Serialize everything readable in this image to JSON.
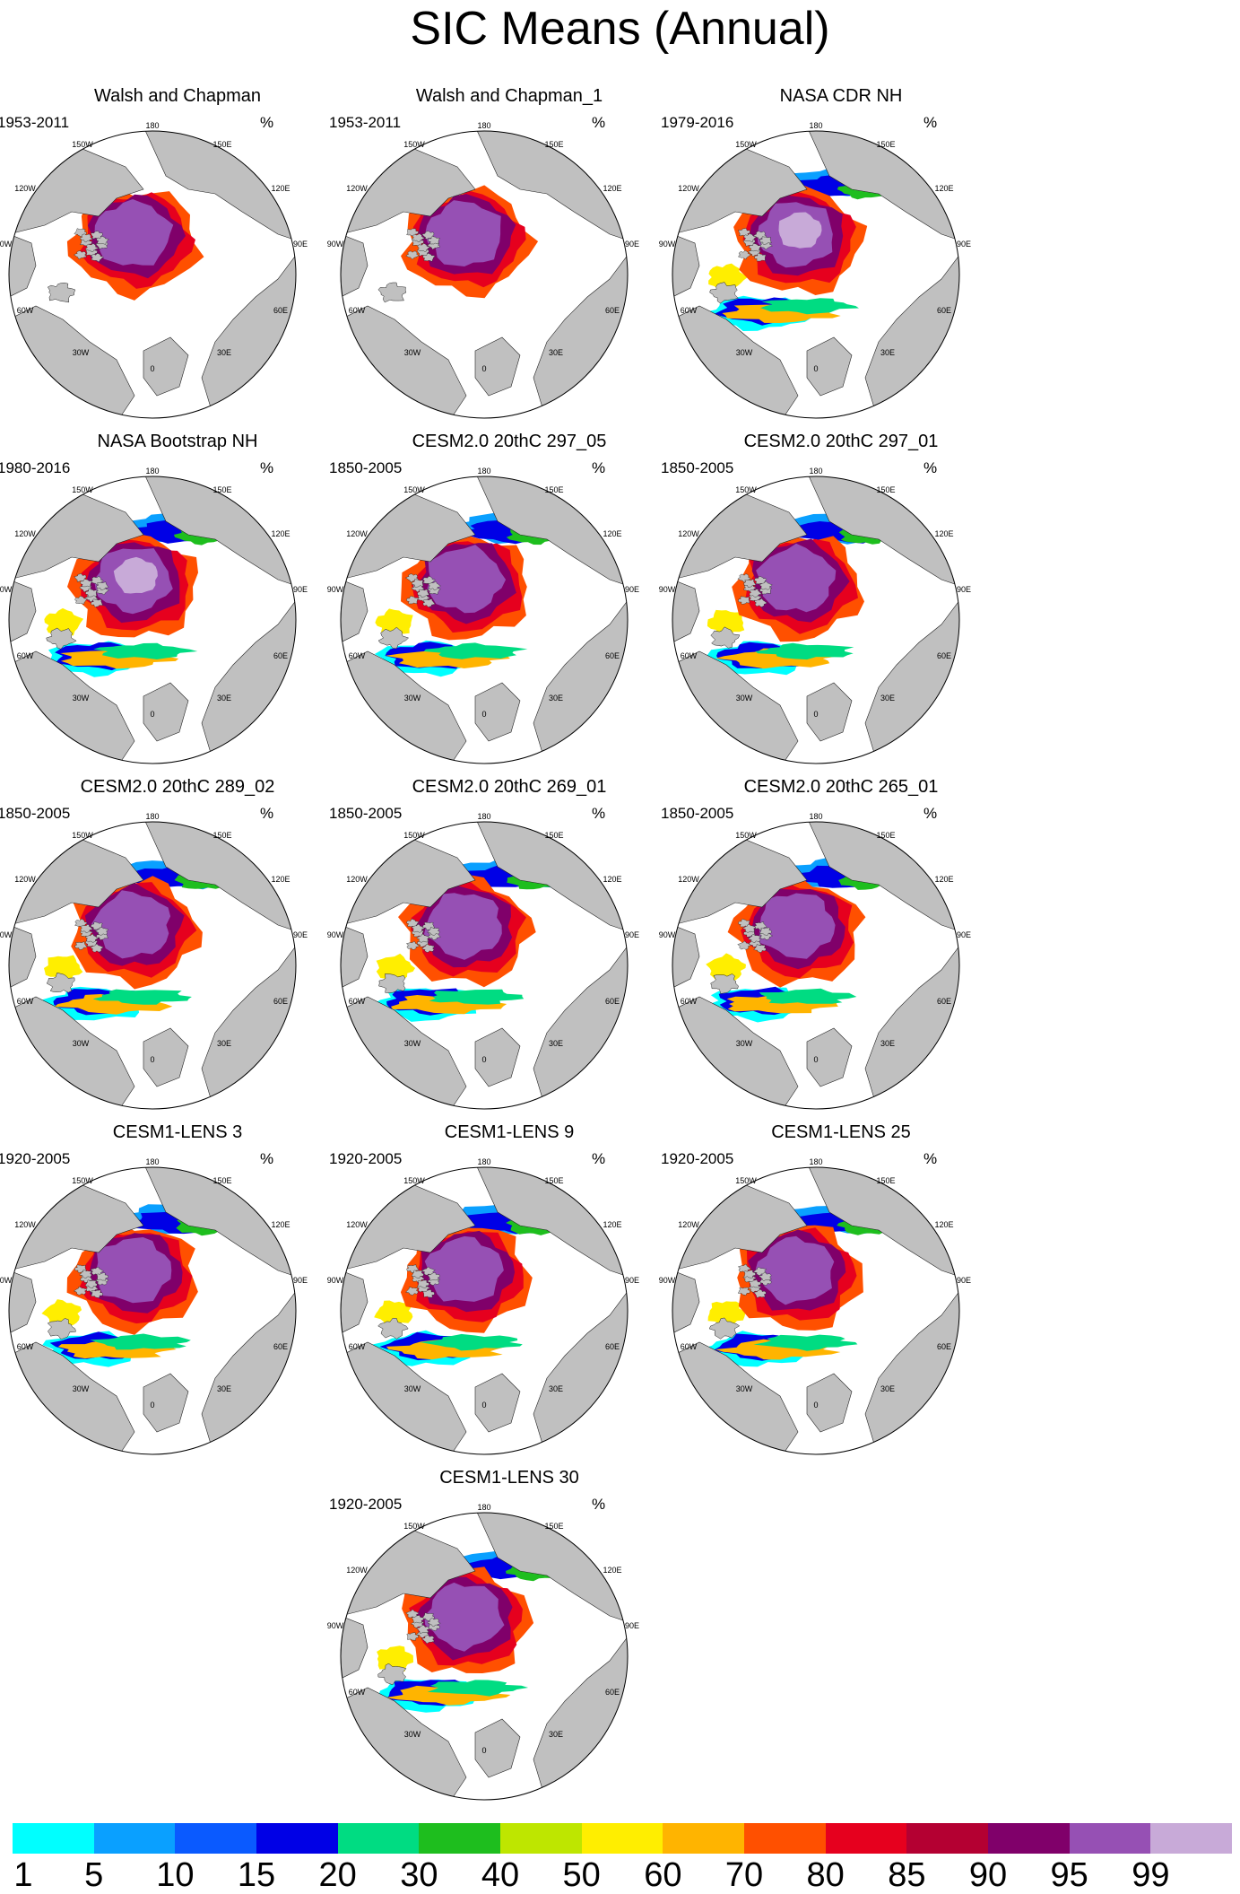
{
  "title": "SIC Means (Annual)",
  "unit": "%",
  "longitude_labels": {
    "top": "180",
    "bottom": "0",
    "ul1": "150W",
    "ur1": "150E",
    "ul2": "120W",
    "ur2": "120E",
    "left": "90W",
    "right": "90E",
    "ll2": "60W",
    "lr2": "60E",
    "ll1": "30W",
    "lr1": "30E"
  },
  "panels": [
    {
      "title": "Walsh and Chapman",
      "period": "1953-2011"
    },
    {
      "title": "Walsh and Chapman_1",
      "period": "1953-2011"
    },
    {
      "title": "NASA CDR NH",
      "period": "1979-2016"
    },
    {
      "title": "NASA Bootstrap NH",
      "period": "1980-2016"
    },
    {
      "title": "CESM2.0 20thC 297_05",
      "period": "1850-2005"
    },
    {
      "title": "CESM2.0 20thC 297_01",
      "period": "1850-2005"
    },
    {
      "title": "CESM2.0 20thC 289_02",
      "period": "1850-2005"
    },
    {
      "title": "CESM2.0 20thC 269_01",
      "period": "1850-2005"
    },
    {
      "title": "CESM2.0 20thC 265_01",
      "period": "1850-2005"
    },
    {
      "title": "CESM1-LENS 3",
      "period": "1920-2005"
    },
    {
      "title": "CESM1-LENS 9",
      "period": "1920-2005"
    },
    {
      "title": "CESM1-LENS 25",
      "period": "1920-2005"
    },
    {
      "title": "CESM1-LENS 30",
      "period": "1920-2005"
    }
  ],
  "colorbar": {
    "labels": [
      "1",
      "5",
      "10",
      "15",
      "20",
      "30",
      "40",
      "50",
      "60",
      "70",
      "80",
      "85",
      "90",
      "95",
      "99"
    ],
    "colors": [
      "#00ffff",
      "#0aa0ff",
      "#0a5aff",
      "#0000e6",
      "#00dc82",
      "#1ebe1e",
      "#bee600",
      "#ffee00",
      "#ffb400",
      "#ff5000",
      "#e6001e",
      "#b40032",
      "#80006a",
      "#9650b4",
      "#c8aad8"
    ]
  }
}
